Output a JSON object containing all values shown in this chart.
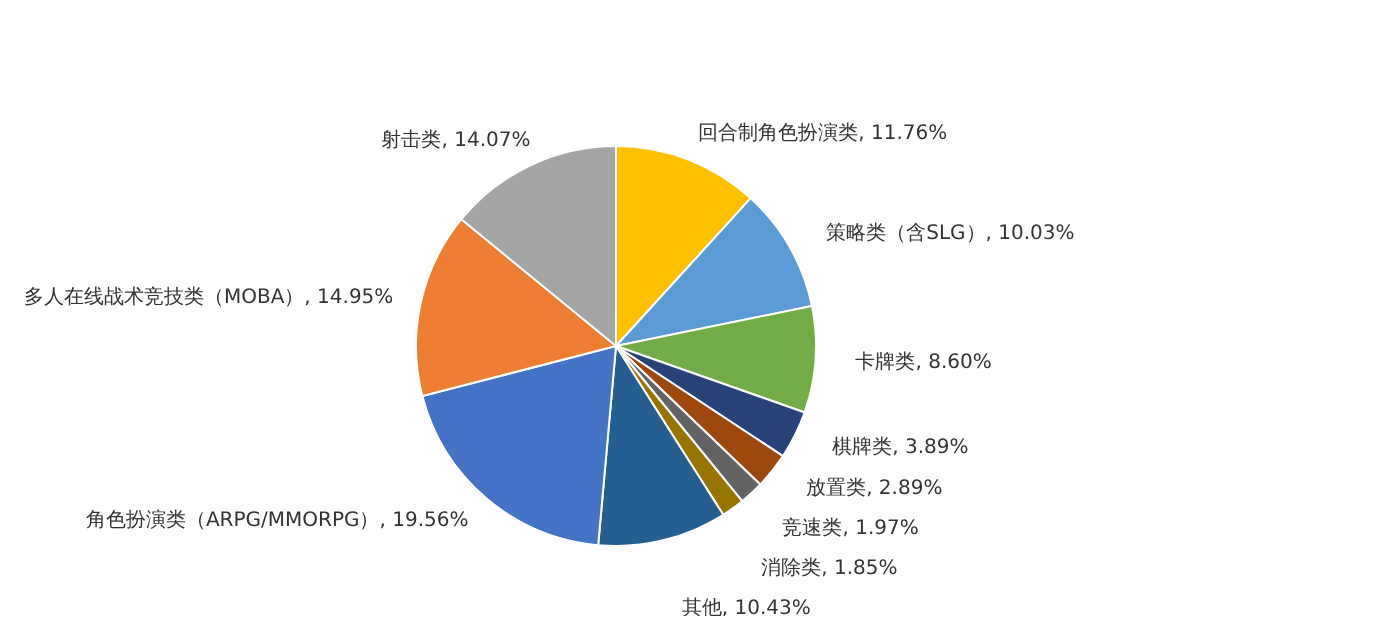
{
  "chart_data": {
    "type": "pie",
    "categories": [
      "回合制角色扮演类",
      "策略类（含SLG）",
      "卡牌类",
      "棋牌类",
      "放置类",
      "竞速类",
      "消除类",
      "其他",
      "角色扮演类（ARPG/MMORPG）",
      "多人在线战术竞技类（MOBA）",
      "射击类"
    ],
    "values": [
      11.76,
      10.03,
      8.6,
      3.89,
      2.89,
      1.97,
      1.85,
      10.43,
      19.56,
      14.95,
      14.07
    ],
    "value_labels": [
      "11.76%",
      "10.03%",
      "8.60%",
      "3.89%",
      "2.89%",
      "1.97%",
      "1.85%",
      "10.43%",
      "19.56%",
      "14.95%",
      "14.07%"
    ],
    "colors": [
      "#ffc000",
      "#5b9bd5",
      "#70ad47",
      "#264478",
      "#9e480e",
      "#636363",
      "#997300",
      "#255e91",
      "#4472c4",
      "#ed7d31",
      "#a5a5a5"
    ],
    "data_labels": true
  }
}
